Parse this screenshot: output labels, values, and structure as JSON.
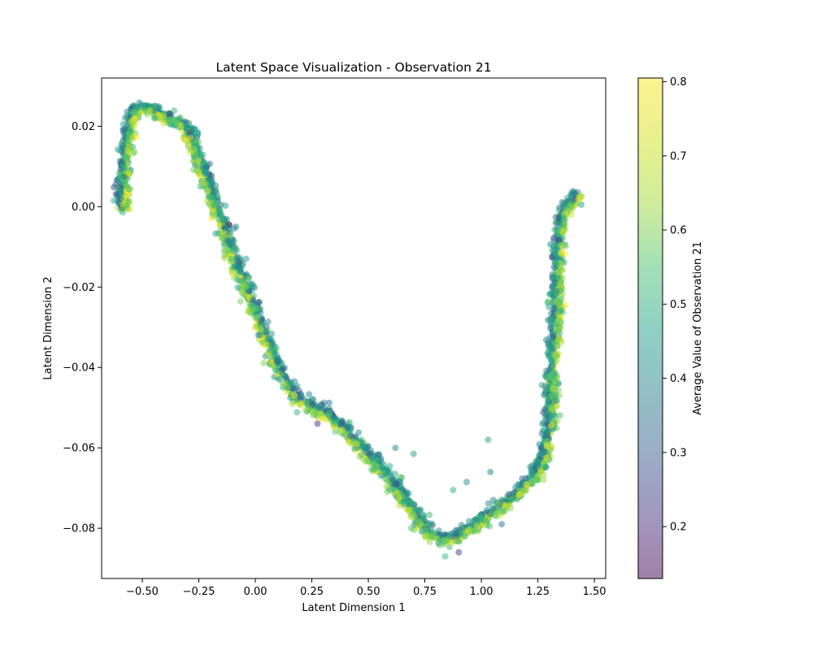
{
  "chart_data": {
    "type": "scatter",
    "title": "Latent Space Visualization - Observation 21",
    "xlabel": "Latent Dimension 1",
    "ylabel": "Latent Dimension 2",
    "xlim": [
      -0.68,
      1.55
    ],
    "ylim": [
      -0.0925,
      0.032
    ],
    "xticks": [
      -0.5,
      -0.25,
      0.0,
      0.25,
      0.5,
      0.75,
      1.0,
      1.25,
      1.5
    ],
    "xtick_labels": [
      "−0.50",
      "−0.25",
      "0.00",
      "0.25",
      "0.50",
      "0.75",
      "1.00",
      "1.25",
      "1.50"
    ],
    "yticks": [
      0.02,
      0.0,
      -0.02,
      -0.04,
      -0.06,
      -0.08
    ],
    "ytick_labels": [
      "0.02",
      "0.00",
      "−0.02",
      "−0.04",
      "−0.06",
      "−0.08"
    ],
    "colorbar": {
      "label": "Average Value of Observation 21",
      "min": 0.13,
      "max": 0.805,
      "ticks": [
        0.2,
        0.3,
        0.4,
        0.5,
        0.6,
        0.7,
        0.8
      ],
      "tick_labels": [
        "0.2",
        "0.3",
        "0.4",
        "0.5",
        "0.6",
        "0.7",
        "0.8"
      ],
      "colormap": "viridis",
      "alpha": 0.5
    },
    "curve": [
      [
        -0.59,
        -0.001
      ],
      [
        -0.585,
        0.004
      ],
      [
        -0.575,
        0.012
      ],
      [
        -0.56,
        0.019
      ],
      [
        -0.545,
        0.023
      ],
      [
        -0.52,
        0.0245
      ],
      [
        -0.47,
        0.024
      ],
      [
        -0.4,
        0.0225
      ],
      [
        -0.33,
        0.021
      ],
      [
        -0.29,
        0.018
      ],
      [
        -0.25,
        0.012
      ],
      [
        -0.2,
        0.004
      ],
      [
        -0.15,
        -0.004
      ],
      [
        -0.1,
        -0.012
      ],
      [
        -0.05,
        -0.019
      ],
      [
        0.0,
        -0.026
      ],
      [
        0.05,
        -0.033
      ],
      [
        0.1,
        -0.04
      ],
      [
        0.15,
        -0.0455
      ],
      [
        0.2,
        -0.048
      ],
      [
        0.25,
        -0.0495
      ],
      [
        0.3,
        -0.051
      ],
      [
        0.35,
        -0.053
      ],
      [
        0.4,
        -0.056
      ],
      [
        0.45,
        -0.059
      ],
      [
        0.5,
        -0.062
      ],
      [
        0.55,
        -0.065
      ],
      [
        0.6,
        -0.068
      ],
      [
        0.65,
        -0.072
      ],
      [
        0.7,
        -0.076
      ],
      [
        0.75,
        -0.08
      ],
      [
        0.8,
        -0.082
      ],
      [
        0.85,
        -0.083
      ],
      [
        0.9,
        -0.082
      ],
      [
        0.95,
        -0.08
      ],
      [
        1.0,
        -0.078
      ],
      [
        1.05,
        -0.076
      ],
      [
        1.1,
        -0.074
      ],
      [
        1.15,
        -0.072
      ],
      [
        1.2,
        -0.069
      ],
      [
        1.25,
        -0.066
      ],
      [
        1.28,
        -0.062
      ],
      [
        1.3,
        -0.055
      ],
      [
        1.31,
        -0.045
      ],
      [
        1.32,
        -0.035
      ],
      [
        1.33,
        -0.025
      ],
      [
        1.34,
        -0.015
      ],
      [
        1.35,
        -0.005
      ],
      [
        1.37,
        0.0
      ],
      [
        1.4,
        0.001
      ],
      [
        1.44,
        0.003
      ]
    ],
    "point_count": 2600,
    "outliers": [
      [
        -0.085,
        -0.005,
        0.45
      ],
      [
        0.275,
        -0.054,
        0.25
      ],
      [
        0.62,
        -0.06,
        0.42
      ],
      [
        0.7,
        -0.0615,
        0.5
      ],
      [
        0.875,
        -0.0705,
        0.55
      ],
      [
        0.935,
        -0.0685,
        0.45
      ],
      [
        1.03,
        -0.058,
        0.52
      ],
      [
        1.04,
        -0.066,
        0.42
      ],
      [
        1.09,
        -0.079,
        0.4
      ],
      [
        0.84,
        -0.087,
        0.58
      ],
      [
        0.9,
        -0.086,
        0.25
      ],
      [
        0.61,
        -0.068,
        0.38
      ]
    ]
  }
}
